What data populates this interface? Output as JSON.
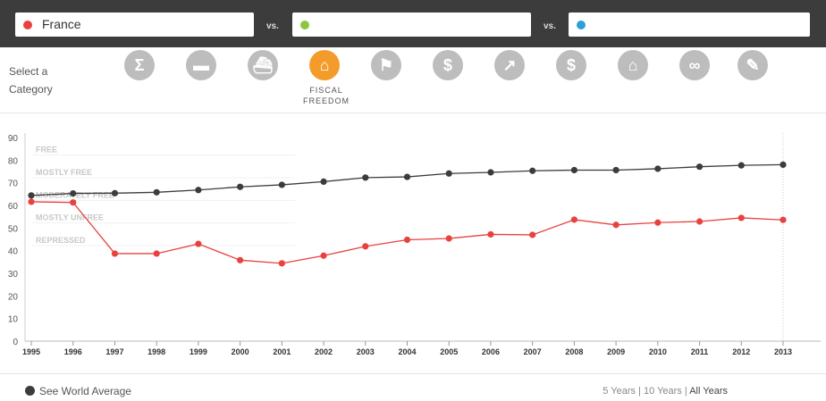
{
  "selectors": [
    {
      "name": "France",
      "color": "#e8423f"
    },
    {
      "name": "",
      "color": "#8cc63e"
    },
    {
      "name": "",
      "color": "#2a9fd8"
    }
  ],
  "vs_label": "vs.",
  "category_prompt": "Select a Category",
  "categories": [
    {
      "icon": "sigma-icon",
      "glyph": "Σ"
    },
    {
      "icon": "briefcase-icon",
      "glyph": "▬"
    },
    {
      "icon": "ship-icon",
      "glyph": "⛴"
    },
    {
      "icon": "fiscal-building-icon",
      "glyph": "⌂",
      "label": "FISCAL FREEDOM",
      "active": true
    },
    {
      "icon": "flag-icon",
      "glyph": "⚑"
    },
    {
      "icon": "dollar-icon",
      "glyph": "$"
    },
    {
      "icon": "chart-arrow-icon",
      "glyph": "↗"
    },
    {
      "icon": "bank-icon",
      "glyph": "$"
    },
    {
      "icon": "house-icon",
      "glyph": "⌂"
    },
    {
      "icon": "mask-icon",
      "glyph": "∞"
    },
    {
      "icon": "wrench-icon",
      "glyph": "✎"
    }
  ],
  "chart_data": {
    "type": "line",
    "x": [
      "1995",
      "1996",
      "1997",
      "1998",
      "1999",
      "2000",
      "2001",
      "2002",
      "2003",
      "2004",
      "2005",
      "2006",
      "2007",
      "2008",
      "2009",
      "2010",
      "2011",
      "2012",
      "2013"
    ],
    "ylim": [
      0,
      90
    ],
    "yticks": [
      0,
      10,
      20,
      30,
      40,
      50,
      60,
      70,
      80,
      90
    ],
    "bands": [
      {
        "label": "FREE",
        "value": 85
      },
      {
        "label": "MOSTLY FREE",
        "value": 75
      },
      {
        "label": "MODERATELY FREE",
        "value": 65
      },
      {
        "label": "MOSTLY UNFREE",
        "value": 55
      },
      {
        "label": "REPRESSED",
        "value": 45
      }
    ],
    "series": [
      {
        "name": "France",
        "color": "#e8423f",
        "values": [
          61.6,
          61.3,
          38.7,
          38.7,
          43.0,
          35.8,
          34.4,
          37.8,
          41.9,
          44.8,
          45.4,
          47.2,
          47.0,
          53.7,
          51.4,
          52.4,
          52.9,
          54.5,
          53.6
        ]
      },
      {
        "name": "See World Average",
        "color": "#3c3c3c",
        "values": [
          64.4,
          65.3,
          65.4,
          65.8,
          66.8,
          68.2,
          69.1,
          70.5,
          72.3,
          72.6,
          74.1,
          74.6,
          75.3,
          75.6,
          75.6,
          76.2,
          77.1,
          77.7,
          78.0
        ]
      }
    ]
  },
  "legend_label": "See World Average",
  "ranges": [
    "5 Years",
    "10 Years",
    "All Years"
  ],
  "range_sep": "|"
}
